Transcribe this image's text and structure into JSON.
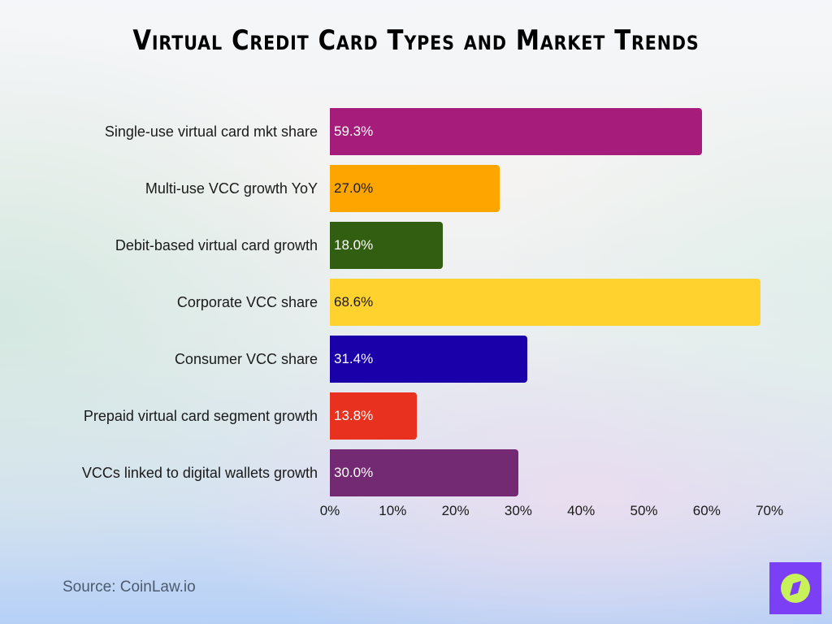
{
  "title": "Virtual Credit Card Types and Market Trends",
  "source": "Source: CoinLaw.io",
  "logo_icon": "compass-icon",
  "colors": {
    "logo_bg": "#7b3ff5",
    "logo_circle": "#c8f25a"
  },
  "chart_data": {
    "type": "bar",
    "orientation": "horizontal",
    "title": "Virtual Credit Card Types and Market Trends",
    "xlabel": "",
    "ylabel": "",
    "xlim": [
      0,
      70
    ],
    "grid": false,
    "legend": null,
    "categories": [
      "Single-use virtual card mkt share",
      "Multi-use VCC growth YoY",
      "Debit-based virtual card growth",
      "Corporate VCC share",
      "Consumer VCC share",
      "Prepaid virtual card segment growth",
      "VCCs linked to digital wallets growth"
    ],
    "values": [
      59.3,
      27.0,
      18.0,
      68.6,
      31.4,
      13.8,
      30.0
    ],
    "value_labels": [
      "59.3%",
      "27.0%",
      "18.0%",
      "68.6%",
      "31.4%",
      "13.8%",
      "30.0%"
    ],
    "bar_colors": [
      "#a61c7a",
      "#ffa500",
      "#325e12",
      "#ffd22e",
      "#1a00a8",
      "#e8321f",
      "#742a72"
    ],
    "label_colors": [
      "#ffffff",
      "#1a1a1a",
      "#ffffff",
      "#1a1a1a",
      "#ffffff",
      "#ffffff",
      "#ffffff"
    ],
    "x_ticks": [
      "0%",
      "10%",
      "20%",
      "30%",
      "40%",
      "50%",
      "60%",
      "70%"
    ],
    "x_tick_values": [
      0,
      10,
      20,
      30,
      40,
      50,
      60,
      70
    ]
  }
}
